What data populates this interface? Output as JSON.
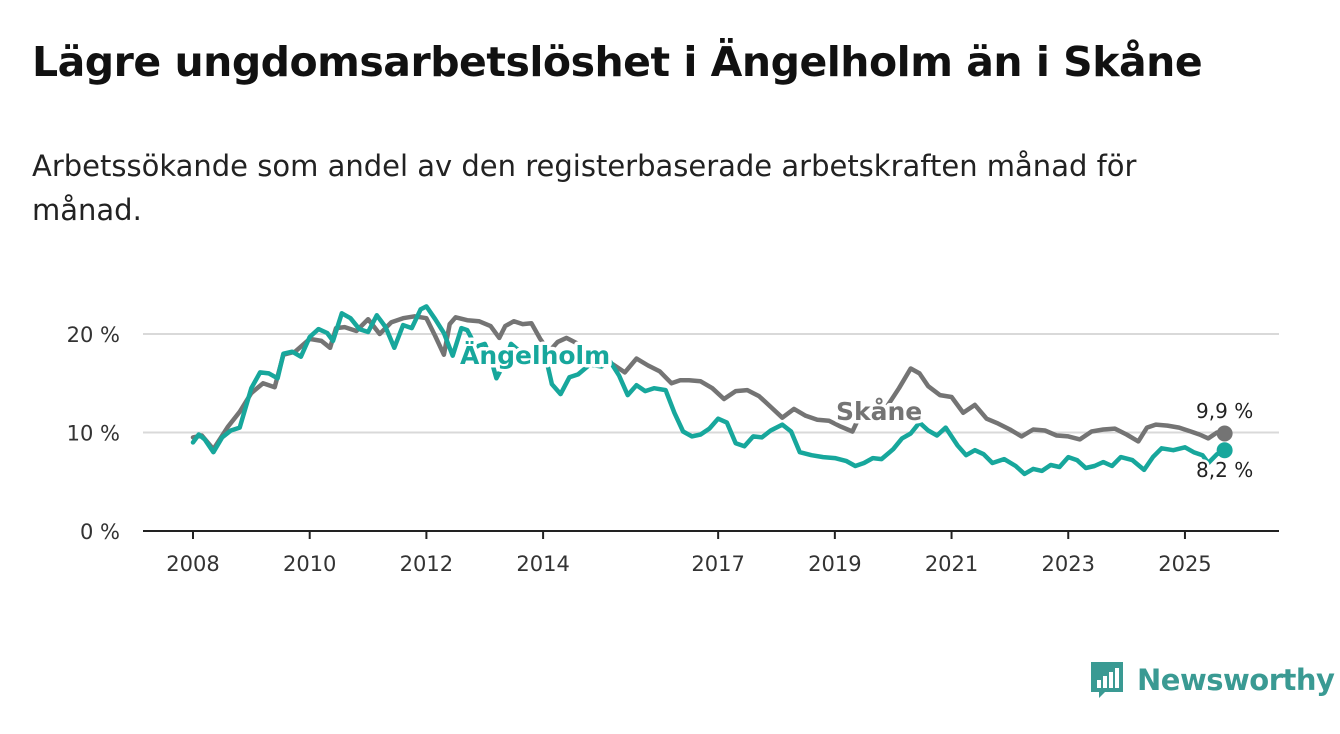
{
  "title": "Lägre ungdomsarbetslöshet i Ängelholm än i Skåne",
  "subtitle": "Arbetssökande som andel av den registerbaserade arbetskraften månad för månad.",
  "brand": {
    "name": "Newsworthy",
    "color": "#3a9a93"
  },
  "chart_data": {
    "type": "line",
    "y_ticks": [
      {
        "value": 0,
        "label": "0 %"
      },
      {
        "value": 10,
        "label": "10 %"
      },
      {
        "value": 20,
        "label": "20 %"
      }
    ],
    "x_ticks": [
      {
        "value": 2008,
        "label": "2008"
      },
      {
        "value": 2010,
        "label": "2010"
      },
      {
        "value": 2012,
        "label": "2012"
      },
      {
        "value": 2014,
        "label": "2014"
      },
      {
        "value": 2017,
        "label": "2017"
      },
      {
        "value": 2019,
        "label": "2019"
      },
      {
        "value": 2021,
        "label": "2021"
      },
      {
        "value": 2023,
        "label": "2023"
      },
      {
        "value": 2025,
        "label": "2025"
      }
    ],
    "xlim": [
      2007.15,
      2026.55
    ],
    "ylim": [
      0,
      23
    ],
    "series": [
      {
        "name": "Skåne",
        "label": "Skåne",
        "color": "#747474",
        "end_label": "9,9 %",
        "x": [
          2008.0,
          2008.15,
          2008.35,
          2008.6,
          2008.8,
          2009.0,
          2009.2,
          2009.4,
          2009.55,
          2009.75,
          2010.0,
          2010.2,
          2010.35,
          2010.45,
          2010.6,
          2010.8,
          2011.0,
          2011.2,
          2011.4,
          2011.6,
          2011.8,
          2012.0,
          2012.15,
          2012.3,
          2012.4,
          2012.5,
          2012.7,
          2012.9,
          2013.1,
          2013.25,
          2013.35,
          2013.5,
          2013.65,
          2013.8,
          2013.95,
          2014.1,
          2014.25,
          2014.4,
          2014.6,
          2014.8,
          2015.0,
          2015.2,
          2015.4,
          2015.6,
          2015.8,
          2016.0,
          2016.2,
          2016.35,
          2016.5,
          2016.7,
          2016.9,
          2017.1,
          2017.3,
          2017.5,
          2017.7,
          2017.9,
          2018.1,
          2018.3,
          2018.5,
          2018.7,
          2018.9,
          2019.1,
          2019.3,
          2019.5,
          2019.7,
          2019.9,
          2020.1,
          2020.3,
          2020.45,
          2020.6,
          2020.8,
          2021.0,
          2021.2,
          2021.4,
          2021.6,
          2021.8,
          2022.0,
          2022.2,
          2022.4,
          2022.6,
          2022.8,
          2023.0,
          2023.2,
          2023.4,
          2023.6,
          2023.8,
          2024.0,
          2024.2,
          2024.35,
          2024.5,
          2024.7,
          2024.9,
          2025.1,
          2025.25,
          2025.4,
          2025.55,
          2025.68
        ],
        "y": [
          9.5,
          9.7,
          8.3,
          10.6,
          12.1,
          14.0,
          15.0,
          14.6,
          17.9,
          18.2,
          19.5,
          19.3,
          18.6,
          20.6,
          20.7,
          20.3,
          21.5,
          20.0,
          21.2,
          21.6,
          21.8,
          21.6,
          19.8,
          17.9,
          21.0,
          21.7,
          21.4,
          21.3,
          20.8,
          19.6,
          20.8,
          21.3,
          21.0,
          21.1,
          19.5,
          18.2,
          19.2,
          19.6,
          19.0,
          17.8,
          17.4,
          16.9,
          16.1,
          17.5,
          16.8,
          16.2,
          15.0,
          15.3,
          15.3,
          15.2,
          14.5,
          13.4,
          14.2,
          14.3,
          13.7,
          12.6,
          11.5,
          12.4,
          11.7,
          11.3,
          11.2,
          10.6,
          10.1,
          12.6,
          12.0,
          12.7,
          14.5,
          16.5,
          16.0,
          14.7,
          13.8,
          13.6,
          12.0,
          12.8,
          11.4,
          10.9,
          10.3,
          9.6,
          10.3,
          10.2,
          9.7,
          9.6,
          9.3,
          10.1,
          10.3,
          10.4,
          9.8,
          9.1,
          10.5,
          10.8,
          10.7,
          10.5,
          10.1,
          9.8,
          9.4,
          10.0,
          9.9
        ]
      },
      {
        "name": "Ängelholm",
        "label": "Ängelholm",
        "color": "#17a79c",
        "end_label": "8,2 %",
        "x": [
          2008.0,
          2008.1,
          2008.2,
          2008.35,
          2008.5,
          2008.65,
          2008.8,
          2009.0,
          2009.15,
          2009.3,
          2009.45,
          2009.55,
          2009.7,
          2009.85,
          2010.0,
          2010.15,
          2010.3,
          2010.4,
          2010.55,
          2010.7,
          2010.85,
          2011.0,
          2011.15,
          2011.3,
          2011.45,
          2011.6,
          2011.75,
          2011.9,
          2012.0,
          2012.15,
          2012.3,
          2012.45,
          2012.6,
          2012.7,
          2012.85,
          2013.0,
          2013.1,
          2013.2,
          2013.35,
          2013.45,
          2013.55,
          2013.7,
          2013.85,
          2014.0,
          2014.15,
          2014.3,
          2014.45,
          2014.6,
          2014.8,
          2015.0,
          2015.15,
          2015.3,
          2015.45,
          2015.6,
          2015.75,
          2015.9,
          2016.1,
          2016.25,
          2016.4,
          2016.55,
          2016.7,
          2016.85,
          2017.0,
          2017.15,
          2017.3,
          2017.45,
          2017.6,
          2017.75,
          2017.9,
          2018.1,
          2018.25,
          2018.4,
          2018.6,
          2018.8,
          2019.0,
          2019.2,
          2019.35,
          2019.5,
          2019.65,
          2019.8,
          2020.0,
          2020.15,
          2020.3,
          2020.45,
          2020.6,
          2020.75,
          2020.9,
          2021.1,
          2021.25,
          2021.4,
          2021.55,
          2021.7,
          2021.9,
          2022.1,
          2022.25,
          2022.4,
          2022.55,
          2022.7,
          2022.85,
          2023.0,
          2023.15,
          2023.3,
          2023.45,
          2023.6,
          2023.75,
          2023.9,
          2024.1,
          2024.3,
          2024.45,
          2024.6,
          2024.8,
          2025.0,
          2025.15,
          2025.3,
          2025.4,
          2025.55,
          2025.68
        ],
        "y": [
          9.0,
          9.8,
          9.3,
          8.0,
          9.5,
          10.2,
          10.5,
          14.5,
          16.1,
          16.0,
          15.5,
          18.0,
          18.2,
          17.7,
          19.7,
          20.5,
          20.1,
          19.3,
          22.1,
          21.6,
          20.5,
          20.2,
          21.9,
          20.7,
          18.6,
          20.9,
          20.6,
          22.5,
          22.8,
          21.5,
          20.1,
          17.8,
          20.6,
          20.4,
          18.7,
          19.0,
          17.6,
          15.5,
          17.2,
          19.0,
          18.5,
          17.9,
          17.4,
          18.8,
          14.9,
          13.9,
          15.6,
          15.9,
          16.9,
          16.7,
          17.2,
          15.8,
          13.8,
          14.8,
          14.2,
          14.5,
          14.3,
          12.0,
          10.1,
          9.6,
          9.8,
          10.4,
          11.4,
          11.0,
          8.9,
          8.6,
          9.6,
          9.5,
          10.2,
          10.8,
          10.1,
          8.0,
          7.7,
          7.5,
          7.4,
          7.1,
          6.6,
          6.9,
          7.4,
          7.3,
          8.3,
          9.4,
          9.9,
          11.0,
          10.2,
          9.7,
          10.5,
          8.7,
          7.7,
          8.2,
          7.8,
          6.9,
          7.3,
          6.6,
          5.8,
          6.3,
          6.1,
          6.7,
          6.5,
          7.5,
          7.2,
          6.4,
          6.6,
          7.0,
          6.6,
          7.5,
          7.2,
          6.2,
          7.5,
          8.4,
          8.2,
          8.5,
          8.0,
          7.7,
          6.9,
          7.8,
          8.2
        ]
      }
    ]
  }
}
